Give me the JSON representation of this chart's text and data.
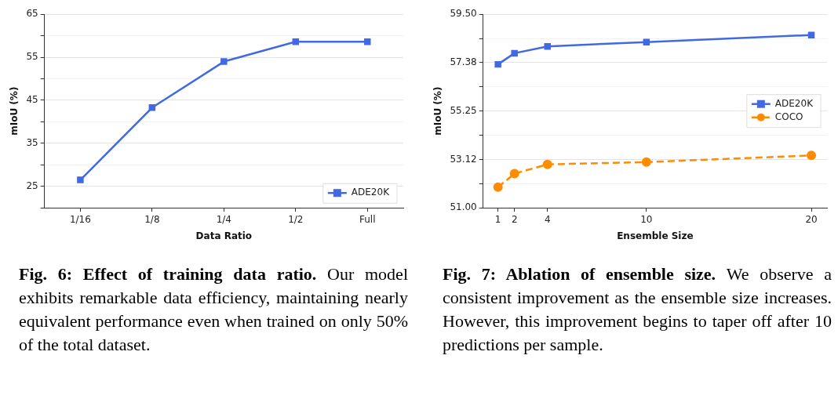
{
  "chart_data": [
    {
      "type": "line",
      "categories": [
        "1/16",
        "1/8",
        "1/4",
        "1/2",
        "Full"
      ],
      "xlabel": "Data Ratio",
      "ylabel": "mIoU (%)",
      "ylim": [
        20,
        65
      ],
      "yticks": [
        {
          "value": 20,
          "label": null
        },
        25,
        {
          "value": 30,
          "label": null
        },
        35,
        {
          "value": 40,
          "label": null
        },
        45,
        {
          "value": 50,
          "label": null
        },
        55,
        {
          "value": 60,
          "label": null
        },
        65
      ],
      "series": [
        {
          "name": "ADE20K",
          "color": "#4169e1",
          "values": [
            26.5,
            43.3,
            54.0,
            58.6,
            58.6
          ],
          "marker": "square",
          "line_style": "solid"
        }
      ],
      "grid": "y",
      "legend": "bottom right",
      "annotations": [
        "Fig. 6: Effect of training data ratio.",
        "Our model exhibits remarkable data efficiency, maintaining nearly equivalent performance even when trained on only 50% of the total dataset."
      ]
    },
    {
      "type": "line",
      "xlabel": "Ensemble Size",
      "ylabel": "mIoU (%)",
      "xlim": [
        0.1,
        20.95
      ],
      "xticks": [
        1,
        2,
        4,
        10,
        20
      ],
      "ylim": [
        51.0,
        59.5
      ],
      "yticks": [
        {
          "value": 51.0,
          "label": "51.00"
        },
        {
          "value": 52.06,
          "label": null
        },
        {
          "value": 53.12,
          "label": "53.12"
        },
        {
          "value": 54.19,
          "label": null
        },
        {
          "value": 55.25,
          "label": "55.25"
        },
        {
          "value": 56.31,
          "label": null
        },
        {
          "value": 57.38,
          "label": "57.38"
        },
        {
          "value": 58.44,
          "label": null
        },
        {
          "value": 59.5,
          "label": "59.50"
        }
      ],
      "series": [
        {
          "name": "ADE20K",
          "color": "#4169e1",
          "x": [
            1,
            2,
            4,
            10,
            20
          ],
          "values": [
            57.3,
            57.79,
            58.09,
            58.28,
            58.59
          ],
          "marker": "square",
          "line_style": "solid"
        },
        {
          "name": "COCO",
          "color": "#ff8c00",
          "x": [
            1,
            2,
            4,
            10,
            20
          ],
          "values": [
            51.91,
            52.5,
            52.91,
            53.01,
            53.3
          ],
          "marker": "circle",
          "line_style": "dashed"
        }
      ],
      "grid": "y",
      "legend": "right",
      "annotations": [
        "Fig. 7: Ablation of ensemble size.",
        "We observe a consistent improvement as the ensemble size increases. However, this improvement begins to taper off after 10 predictions per sample."
      ]
    }
  ]
}
